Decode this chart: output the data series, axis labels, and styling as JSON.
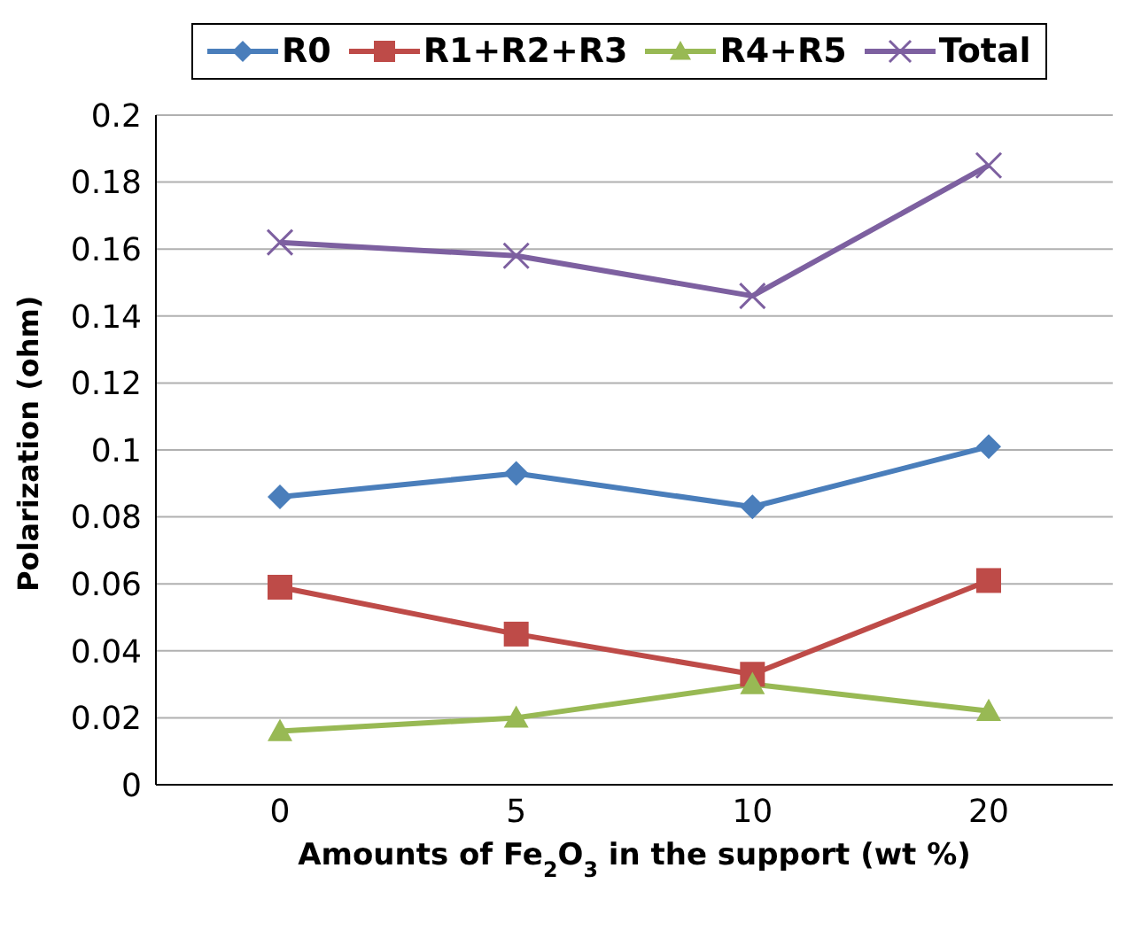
{
  "chart_data": {
    "type": "line",
    "xlabel": "Amounts of Fe$_{2}$O$_{3}$ in the support (wt %)",
    "ylabel": "Polarization (ohm)",
    "categories": [
      "0",
      "5",
      "10",
      "20"
    ],
    "series": [
      {
        "name": "R0",
        "color": "#4a7ebb",
        "marker": "diamond",
        "values": [
          0.086,
          0.093,
          0.083,
          0.101
        ]
      },
      {
        "name": "R1+R2+R3",
        "color": "#be4b48",
        "marker": "square",
        "values": [
          0.059,
          0.045,
          0.033,
          0.061
        ]
      },
      {
        "name": "R4+R5",
        "color": "#98b954",
        "marker": "triangle",
        "values": [
          0.016,
          0.02,
          0.03,
          0.022
        ]
      },
      {
        "name": "Total",
        "color": "#7d60a0",
        "marker": "cross",
        "values": [
          0.162,
          0.158,
          0.146,
          0.185
        ]
      }
    ],
    "ylim": [
      0,
      0.2
    ],
    "yticks": [
      0,
      0.02,
      0.04,
      0.06,
      0.08,
      0.1,
      0.12,
      0.14,
      0.16,
      0.18,
      0.2
    ],
    "grid": "y",
    "legend": "top"
  }
}
